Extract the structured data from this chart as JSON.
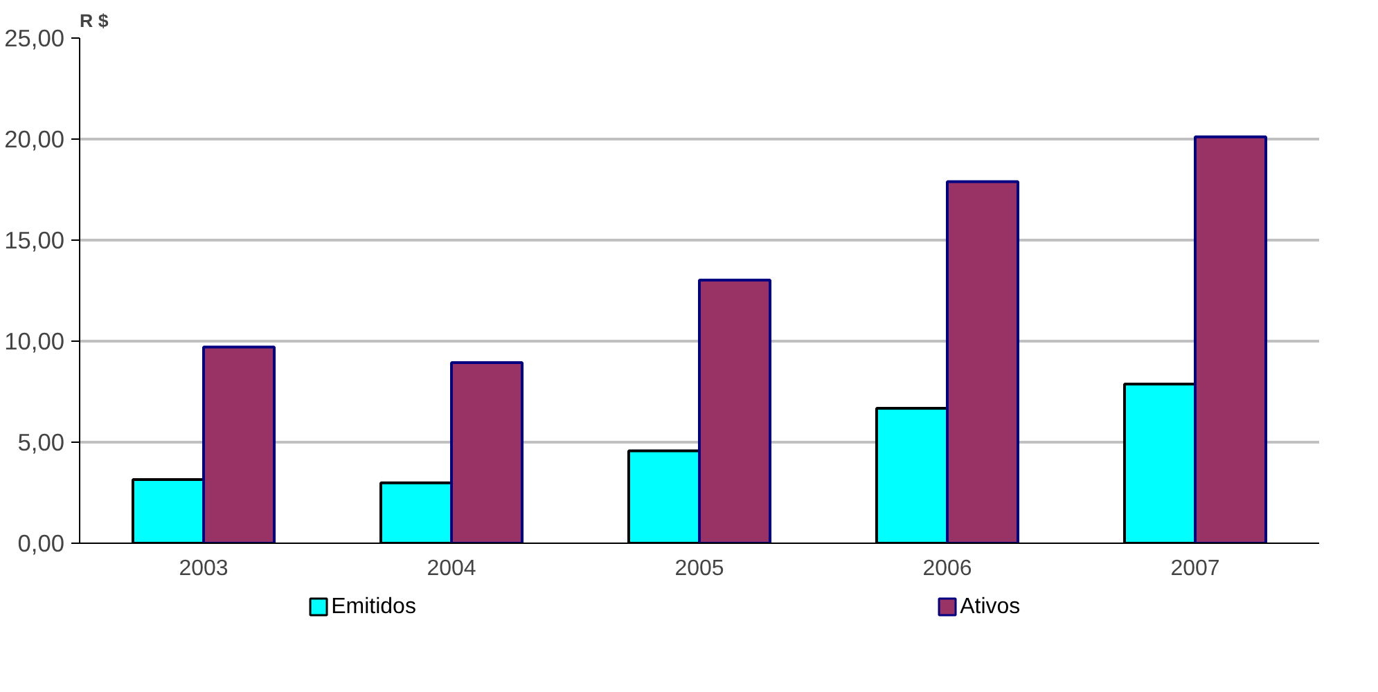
{
  "chart_data": {
    "type": "bar",
    "ylabel": "R $",
    "categories": [
      "2003",
      "2004",
      "2005",
      "2006",
      "2007"
    ],
    "series": [
      {
        "name": "Emitidos",
        "color": "#00ffff",
        "values": [
          3.15,
          2.99,
          4.57,
          6.68,
          7.88
        ]
      },
      {
        "name": "Ativos",
        "color": "#993366",
        "values": [
          9.71,
          8.94,
          13.02,
          17.89,
          20.11
        ]
      }
    ],
    "ylim": [
      0,
      25
    ],
    "yticks": [
      {
        "value": 0,
        "label": "0,00"
      },
      {
        "value": 5,
        "label": "5,00"
      },
      {
        "value": 10,
        "label": "10,00"
      },
      {
        "value": 15,
        "label": "15,00"
      },
      {
        "value": 20,
        "label": "20,00"
      },
      {
        "value": 25,
        "label": "25,00"
      }
    ],
    "grid": "y",
    "legend": "bottom"
  }
}
